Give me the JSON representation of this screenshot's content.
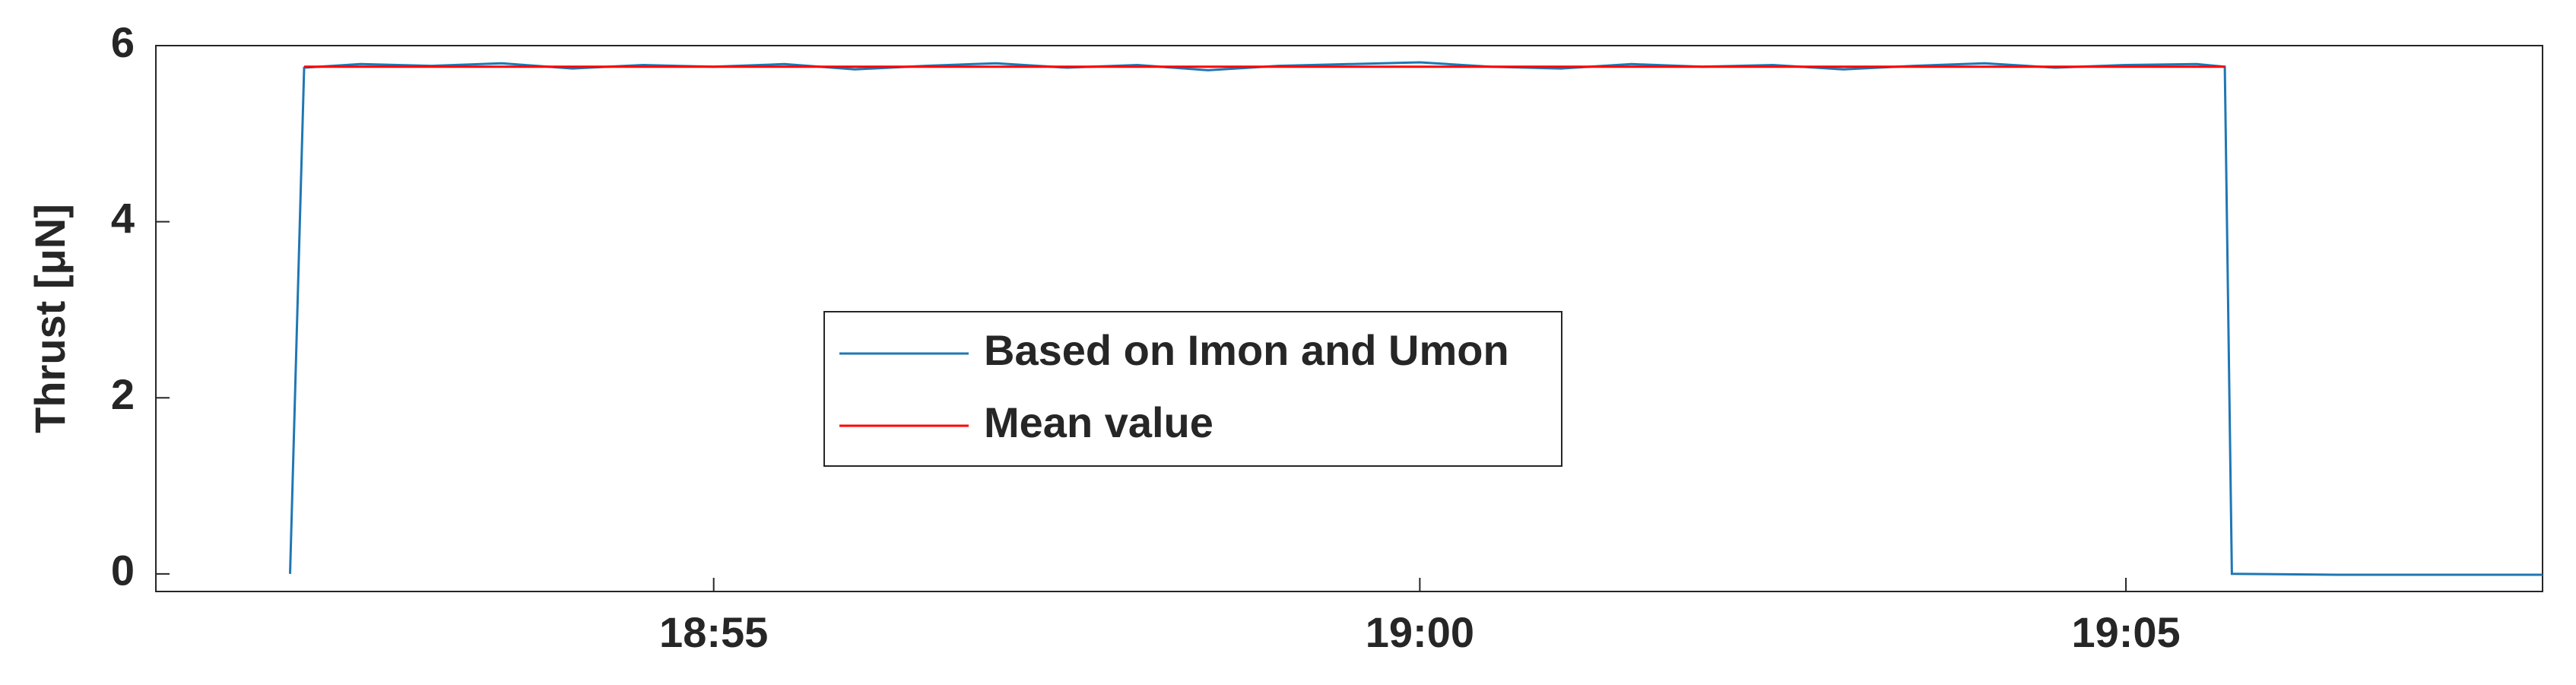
{
  "chart_data": {
    "type": "line",
    "y_label": "Thrust [μN]",
    "xlim": [
      1131.05,
      1147.95
    ],
    "xticks": [
      {
        "value": 1135,
        "label": "18:55"
      },
      {
        "value": 1140,
        "label": "19:00"
      },
      {
        "value": 1145,
        "label": "19:05"
      }
    ],
    "ylim": [
      -0.2,
      6
    ],
    "yticks": [
      0,
      2,
      4,
      6
    ],
    "grid": false,
    "legend": "center",
    "series": [
      {
        "name": "Based on Imon and Umon",
        "color": "#1f77b4",
        "x": [
          1132.0,
          1132.1,
          1132.5,
          1133.0,
          1133.5,
          1134.0,
          1134.5,
          1135.0,
          1135.5,
          1136.0,
          1136.5,
          1137.0,
          1137.5,
          1138.0,
          1138.5,
          1139.0,
          1139.5,
          1140.0,
          1140.5,
          1141.0,
          1141.5,
          1142.0,
          1142.5,
          1143.0,
          1143.5,
          1144.0,
          1144.5,
          1145.0,
          1145.5,
          1145.7,
          1145.75,
          1146.5,
          1147.95
        ],
        "values": [
          0.0,
          5.75,
          5.79,
          5.77,
          5.8,
          5.74,
          5.78,
          5.76,
          5.79,
          5.73,
          5.77,
          5.8,
          5.75,
          5.78,
          5.72,
          5.77,
          5.79,
          5.81,
          5.76,
          5.74,
          5.79,
          5.76,
          5.78,
          5.73,
          5.77,
          5.8,
          5.75,
          5.78,
          5.79,
          5.76,
          0.0,
          -0.01,
          -0.01
        ]
      },
      {
        "name": "Mean value",
        "color": "#ff0000",
        "x": [
          1132.1,
          1145.7
        ],
        "values": [
          5.76,
          5.76
        ]
      }
    ]
  }
}
